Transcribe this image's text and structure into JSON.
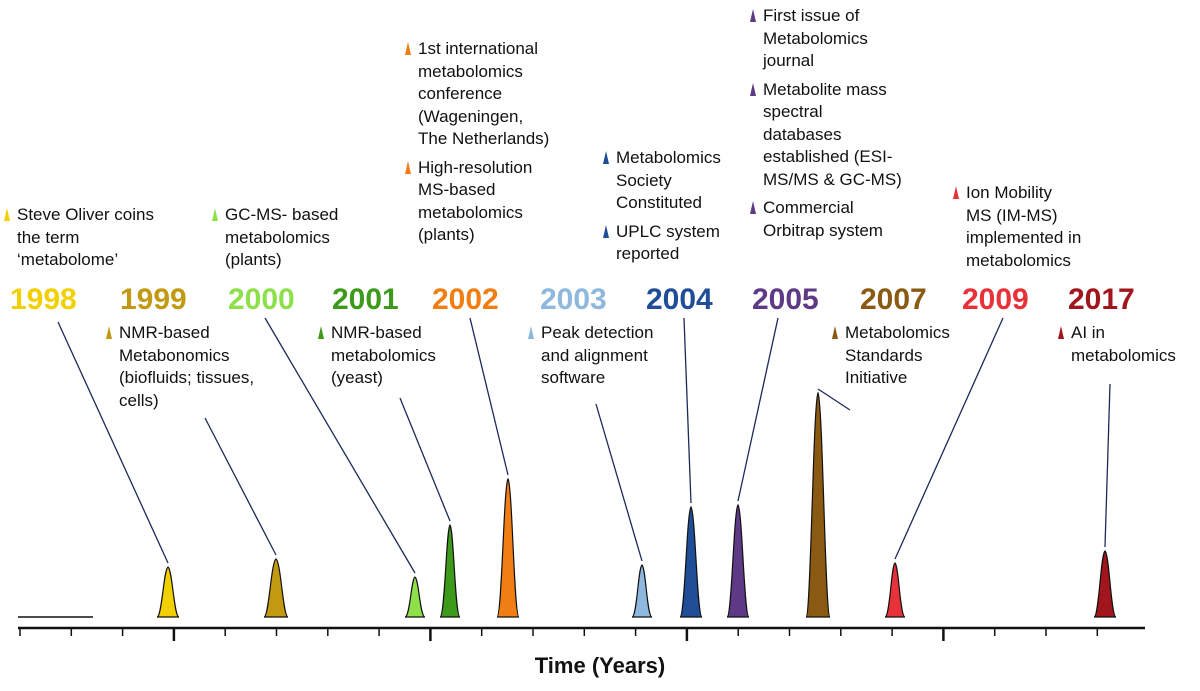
{
  "axis_title": "Time (Years)",
  "events": [
    {
      "year": "1998",
      "color": "#F2D000",
      "label_pos": "above",
      "items": [
        {
          "lines": [
            "Steve Oliver coins",
            "the term",
            "‘metabolome’"
          ]
        }
      ]
    },
    {
      "year": "1999",
      "color": "#C29A12",
      "label_pos": "below",
      "items": [
        {
          "lines": [
            "NMR-based",
            "Metabonomics",
            "(biofluids; tissues,",
            "cells)"
          ]
        }
      ]
    },
    {
      "year": "2000",
      "color": "#8EE04A",
      "label_pos": "above",
      "items": [
        {
          "lines": [
            "GC-MS- based",
            "metabolomics",
            "(plants)"
          ]
        }
      ]
    },
    {
      "year": "2001",
      "color": "#3E9A1A",
      "label_pos": "below",
      "items": [
        {
          "lines": [
            "NMR-based",
            "metabolomics",
            "(yeast)"
          ]
        }
      ]
    },
    {
      "year": "2002",
      "color": "#F07E14",
      "label_pos": "above",
      "items": [
        {
          "lines": [
            "1st international",
            "metabolomics",
            "conference",
            "(Wageningen,",
            "The Netherlands)"
          ]
        },
        {
          "lines": [
            "High-resolution",
            "MS-based",
            "metabolomics",
            "(plants)"
          ]
        }
      ]
    },
    {
      "year": "2003",
      "color": "#8FB8DE",
      "label_pos": "below",
      "items": [
        {
          "lines": [
            "Peak detection",
            "and alignment",
            "software"
          ]
        }
      ]
    },
    {
      "year": "2004",
      "color": "#1F4E96",
      "label_pos": "above",
      "items": [
        {
          "lines": [
            "Metabolomics",
            "Society",
            "Constituted"
          ]
        },
        {
          "lines": [
            "UPLC system",
            "reported"
          ]
        }
      ]
    },
    {
      "year": "2005",
      "color": "#5E3A86",
      "label_pos": "above",
      "items": [
        {
          "lines": [
            "First issue of",
            "Metabolomics",
            "journal"
          ]
        },
        {
          "lines": [
            "Metabolite mass",
            "spectral",
            "databases",
            "established (ESI-",
            "MS/MS & GC-MS)"
          ]
        },
        {
          "lines": [
            "Commercial",
            "Orbitrap system"
          ]
        }
      ]
    },
    {
      "year": "2007",
      "color": "#8B5A12",
      "label_pos": "below",
      "items": [
        {
          "lines": [
            "Metabolomics",
            "Standards",
            "Initiative"
          ]
        }
      ]
    },
    {
      "year": "2009",
      "color": "#E8323A",
      "label_pos": "above",
      "items": [
        {
          "lines": [
            "Ion Mobility",
            "MS (IM-MS)",
            "implemented in",
            "metabolomics"
          ]
        }
      ]
    },
    {
      "year": "2017",
      "color": "#A0161C",
      "label_pos": "below",
      "items": [
        {
          "lines": [
            "AI in",
            "metabolomics"
          ]
        }
      ]
    }
  ]
}
